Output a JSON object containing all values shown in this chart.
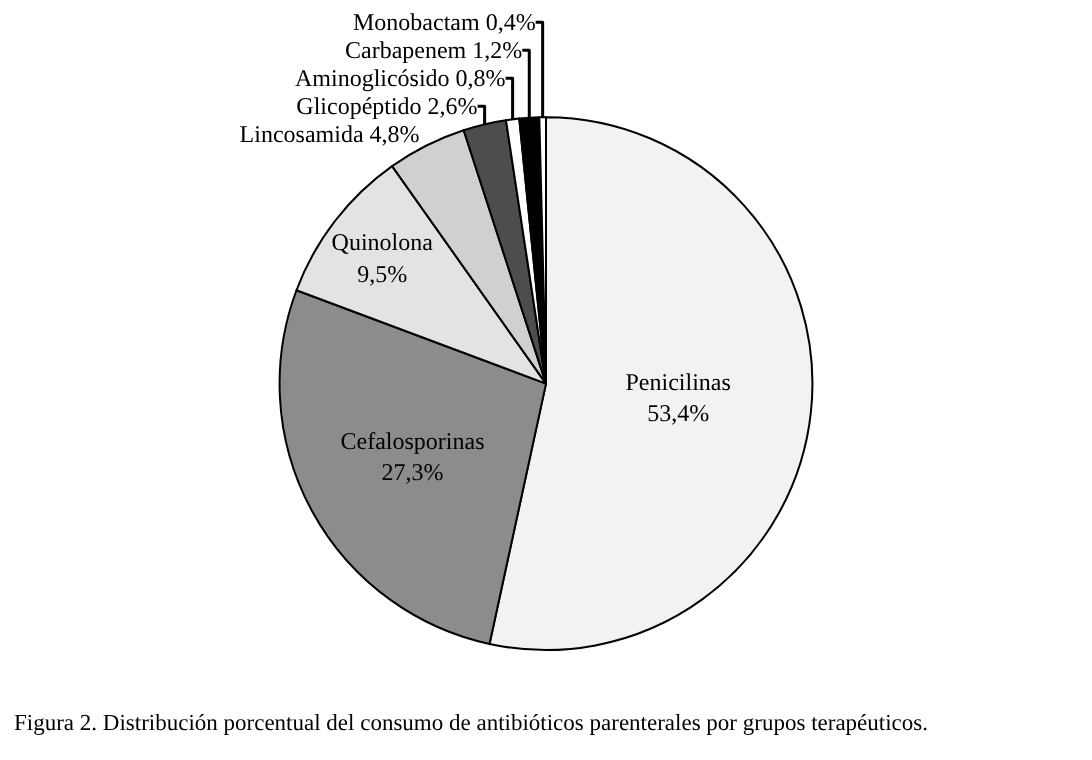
{
  "chart_data": {
    "type": "pie",
    "categories": [
      "Penicilinas",
      "Cefalosporinas",
      "Quinolona",
      "Lincosamida",
      "Glicopéptido",
      "Aminoglicósido",
      "Carbapenem",
      "Monobactam"
    ],
    "values": [
      53.4,
      27.3,
      9.5,
      4.8,
      2.6,
      0.8,
      1.2,
      0.4
    ],
    "value_labels": [
      "53,4%",
      "27,3%",
      "9,5%",
      "4,8%",
      "2,6%",
      "0,8%",
      "1,2%",
      "0,4%"
    ],
    "colors": [
      "#f2f2f2",
      "#8c8c8c",
      "#e3e3e3",
      "#d0d0d0",
      "#4d4d4d",
      "#ffffff",
      "#000000",
      "#ffffff"
    ],
    "annotations": [
      "Figura 2. Distribución porcentual del consumo de antibióticos parenterales por grupos terapéuticos."
    ],
    "legend": false
  }
}
